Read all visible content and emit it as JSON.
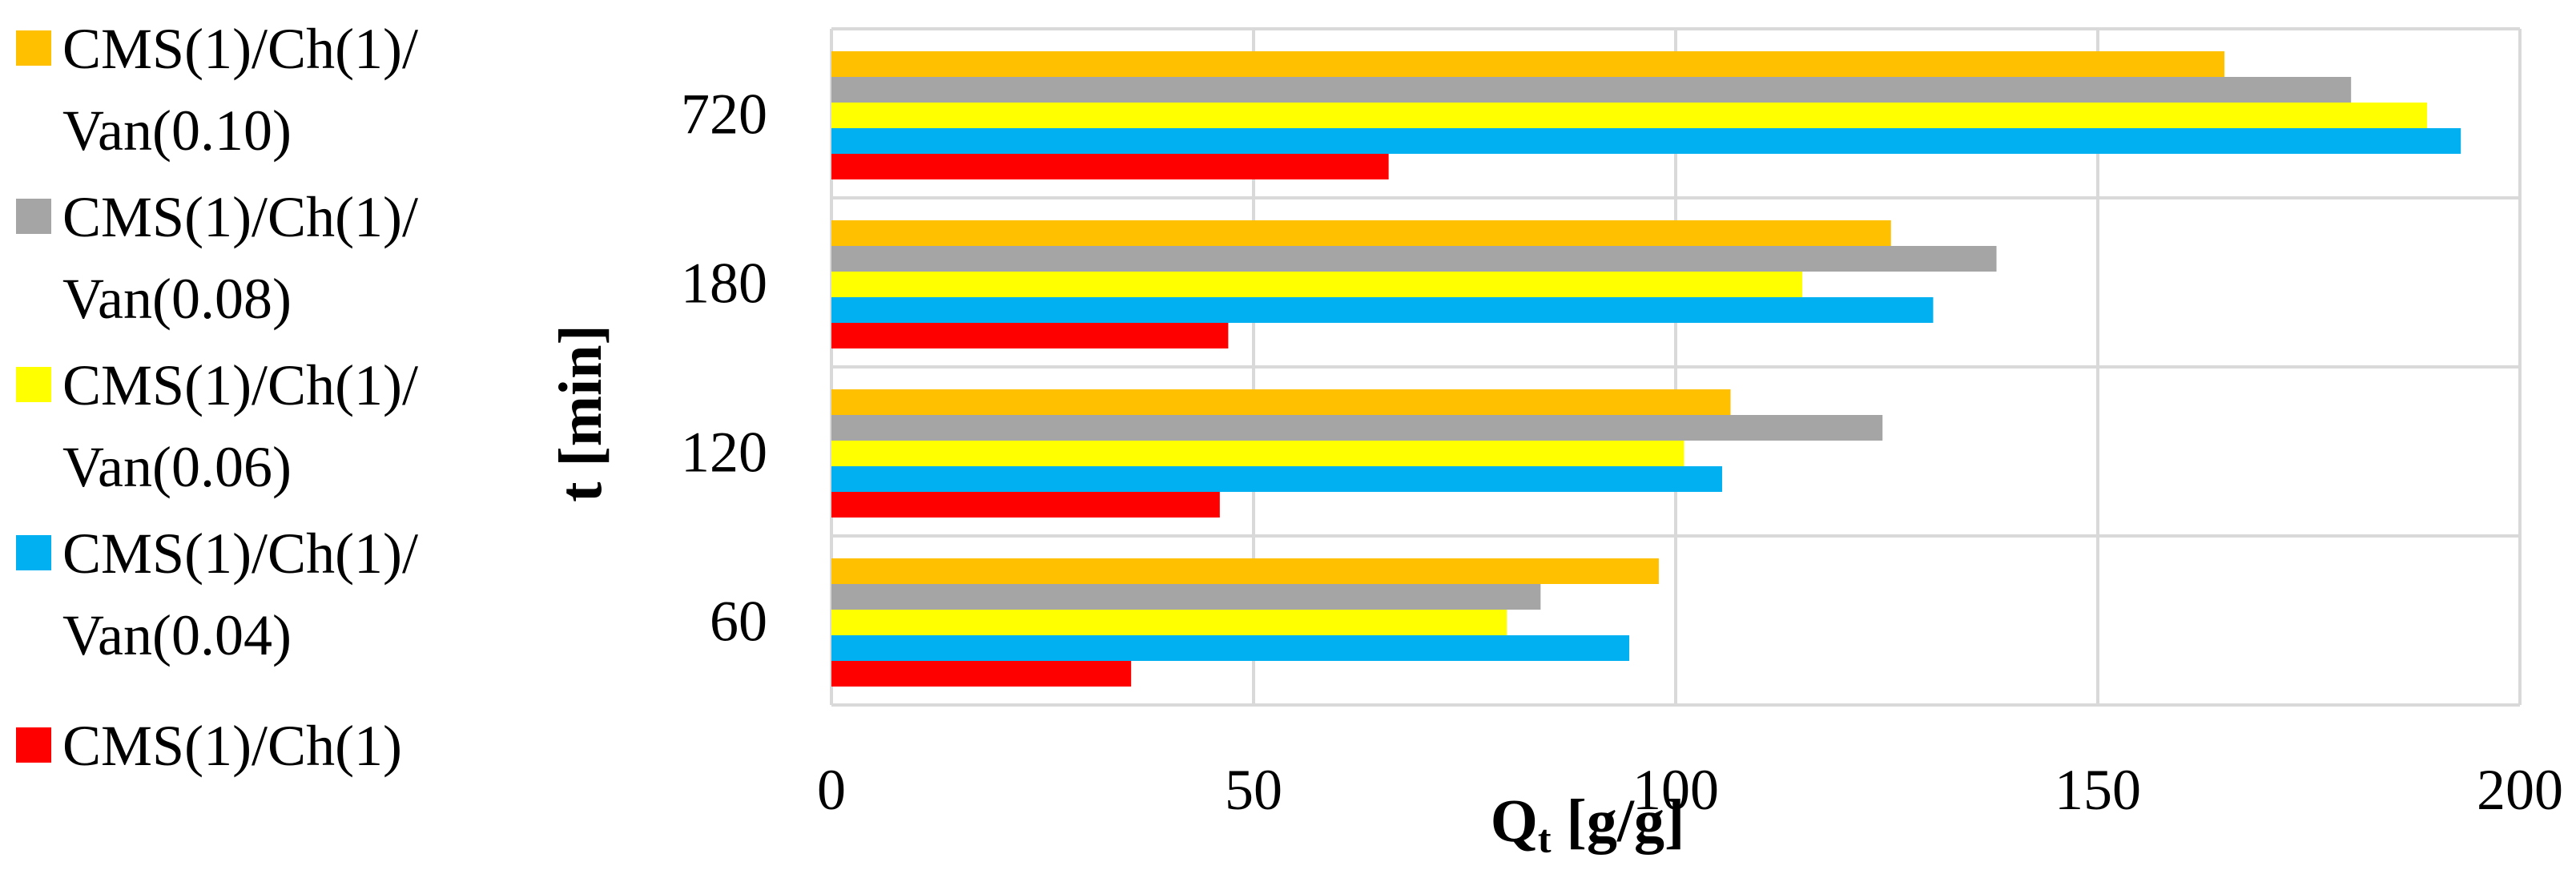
{
  "chart_data": {
    "type": "bar",
    "orientation": "horizontal",
    "title": "",
    "xlabel": {
      "main": "Q",
      "sub": "t",
      "rest": " [g/g]"
    },
    "ylabel": "t [min]",
    "xlim": [
      0,
      200
    ],
    "x_ticks": [
      "0",
      "50",
      "100",
      "150",
      "200"
    ],
    "x_tick_values": [
      0,
      50,
      100,
      150,
      200
    ],
    "categories": [
      "60",
      "120",
      "180",
      "720"
    ],
    "grid": true,
    "legend_position": "left",
    "series": [
      {
        "name_line1": "CMS(1)/Ch(1)/",
        "name_line2": "Van(0.10)",
        "color": "#FFC000",
        "values": [
          98,
          106.5,
          125.5,
          165
        ]
      },
      {
        "name_line1": "CMS(1)/Ch(1)/",
        "name_line2": "Van(0.08)",
        "color": "#A5A5A5",
        "values": [
          84,
          124.5,
          138,
          180
        ]
      },
      {
        "name_line1": "CMS(1)/Ch(1)/",
        "name_line2": "Van(0.06)",
        "color": "#FFFF00",
        "values": [
          80,
          101,
          115,
          189
        ]
      },
      {
        "name_line1": "CMS(1)/Ch(1)/",
        "name_line2": "Van(0.04)",
        "color": "#00B0F0",
        "values": [
          94.5,
          105.5,
          130.5,
          193
        ]
      },
      {
        "name_line1": "CMS(1)/Ch(1)",
        "name_line2": "",
        "color": "#FF0000",
        "values": [
          35.5,
          46,
          47,
          66
        ]
      }
    ]
  }
}
